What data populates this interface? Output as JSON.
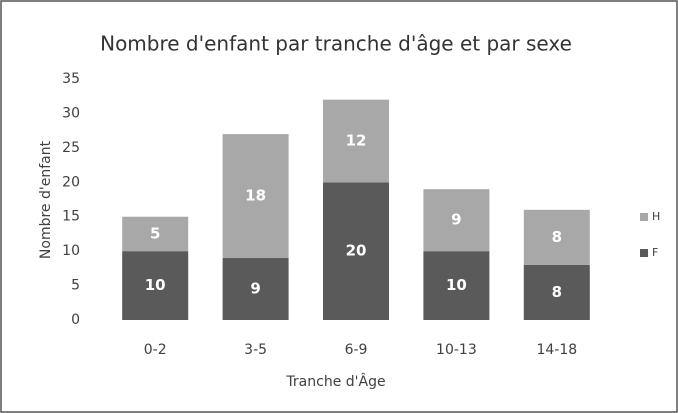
{
  "chart_data": {
    "type": "stacked_bar",
    "title": "Nombre d'enfant par tranche d'âge et par sexe",
    "x_label": "Tranche d'Âge",
    "y_label": "Nombre d'enfant",
    "categories": [
      "0-2",
      "3-5",
      "6-9",
      "10-13",
      "14-18"
    ],
    "series": [
      {
        "name": "F",
        "color": "#5a5a5a",
        "values": [
          10,
          9,
          20,
          10,
          8
        ]
      },
      {
        "name": "H",
        "color": "#a8a8a8",
        "values": [
          5,
          18,
          12,
          9,
          8
        ]
      }
    ],
    "ylim": [
      0,
      35
    ],
    "yticks": [
      0,
      5,
      10,
      15,
      20,
      25,
      30,
      35
    ],
    "grid": false,
    "legend": "right"
  }
}
